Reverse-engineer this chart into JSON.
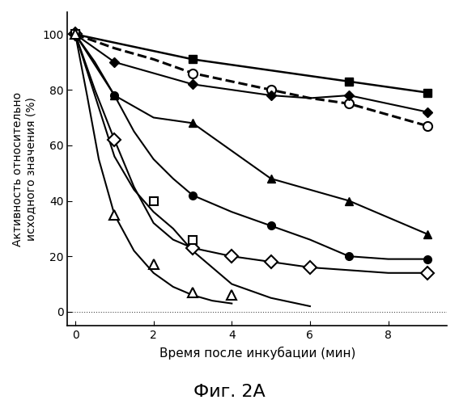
{
  "title": "Фиг. 2А",
  "xlabel": "Время после инкубации (мин)",
  "ylabel": "Активность относительно\nисходного значения (%)",
  "xlim": [
    -0.2,
    9.5
  ],
  "ylim": [
    -5,
    108
  ],
  "xticks": [
    0,
    2,
    4,
    6,
    8
  ],
  "yticks": [
    0,
    20,
    40,
    60,
    80,
    100
  ],
  "series": [
    {
      "name": "filled_square",
      "marker": "s",
      "filled": true,
      "color": "black",
      "linestyle": "-",
      "linewidth": 1.8,
      "markersize": 7,
      "data_x": [
        0,
        3,
        7,
        9
      ],
      "data_y": [
        100,
        91,
        83,
        79
      ],
      "curve_x": [
        0,
        1,
        2,
        3,
        4,
        5,
        6,
        7,
        8,
        9
      ],
      "curve_y": [
        100,
        97,
        94,
        91,
        89,
        87,
        85,
        83,
        81,
        79
      ]
    },
    {
      "name": "open_circle_dashed",
      "marker": "o",
      "filled": false,
      "color": "black",
      "linestyle": "--",
      "linewidth": 2.2,
      "markersize": 8,
      "data_x": [
        0,
        3,
        5,
        7,
        9
      ],
      "data_y": [
        100,
        86,
        80,
        75,
        67
      ],
      "curve_x": [
        0,
        1,
        2,
        3,
        4,
        5,
        6,
        7,
        8,
        9
      ],
      "curve_y": [
        100,
        95,
        91,
        86,
        83,
        80,
        77,
        75,
        71,
        67
      ]
    },
    {
      "name": "filled_diamond",
      "marker": "D",
      "filled": true,
      "color": "black",
      "linestyle": "-",
      "linewidth": 1.5,
      "markersize": 6,
      "data_x": [
        0,
        1,
        3,
        5,
        7,
        9
      ],
      "data_y": [
        100,
        90,
        82,
        78,
        78,
        72
      ],
      "curve_x": [
        0,
        1,
        2,
        3,
        4,
        5,
        6,
        7,
        8,
        9
      ],
      "curve_y": [
        100,
        90,
        86,
        82,
        80,
        78,
        77,
        78,
        75,
        72
      ]
    },
    {
      "name": "filled_triangle",
      "marker": "^",
      "filled": true,
      "color": "black",
      "linestyle": "-",
      "linewidth": 1.5,
      "markersize": 7,
      "data_x": [
        0,
        1,
        3,
        5,
        7,
        9
      ],
      "data_y": [
        100,
        78,
        68,
        48,
        40,
        28
      ],
      "curve_x": [
        0,
        0.5,
        1,
        1.5,
        2,
        3,
        4,
        5,
        6,
        7,
        8,
        9
      ],
      "curve_y": [
        100,
        90,
        78,
        74,
        70,
        68,
        58,
        48,
        44,
        40,
        34,
        28
      ]
    },
    {
      "name": "filled_circle",
      "marker": "o",
      "filled": true,
      "color": "black",
      "linestyle": "-",
      "linewidth": 1.5,
      "markersize": 7,
      "data_x": [
        0,
        1,
        3,
        5,
        7,
        9
      ],
      "data_y": [
        100,
        78,
        42,
        31,
        20,
        19
      ],
      "curve_x": [
        0,
        0.5,
        1,
        1.5,
        2,
        2.5,
        3,
        4,
        5,
        6,
        7,
        8,
        9
      ],
      "curve_y": [
        100,
        89,
        78,
        65,
        55,
        48,
        42,
        36,
        31,
        26,
        20,
        19,
        19
      ]
    },
    {
      "name": "open_diamond",
      "marker": "D",
      "filled": false,
      "color": "black",
      "linestyle": "-",
      "linewidth": 1.5,
      "markersize": 8,
      "data_x": [
        0,
        1,
        3,
        4,
        5,
        6,
        9
      ],
      "data_y": [
        100,
        62,
        23,
        20,
        18,
        16,
        14
      ],
      "curve_x": [
        0,
        0.5,
        1,
        1.5,
        2,
        2.5,
        3,
        4,
        5,
        6,
        7,
        8,
        9
      ],
      "curve_y": [
        100,
        80,
        62,
        45,
        32,
        26,
        23,
        20,
        18,
        16,
        15,
        14,
        14
      ]
    },
    {
      "name": "open_square",
      "marker": "s",
      "filled": false,
      "color": "black",
      "linestyle": "-",
      "linewidth": 1.5,
      "markersize": 7,
      "data_x": [
        0,
        2,
        3
      ],
      "data_y": [
        100,
        40,
        26
      ],
      "curve_x": [
        0,
        0.5,
        1,
        1.5,
        2,
        2.5,
        3,
        3.5,
        4,
        5,
        6
      ],
      "curve_y": [
        100,
        78,
        56,
        44,
        36,
        30,
        22,
        16,
        10,
        5,
        2
      ]
    },
    {
      "name": "open_triangle",
      "marker": "^",
      "filled": false,
      "color": "black",
      "linestyle": "-",
      "linewidth": 1.5,
      "markersize": 8,
      "data_x": [
        0,
        1,
        2,
        3,
        4
      ],
      "data_y": [
        100,
        35,
        17,
        7,
        6
      ],
      "curve_x": [
        0,
        0.3,
        0.6,
        1,
        1.5,
        2,
        2.5,
        3,
        3.5,
        4
      ],
      "curve_y": [
        100,
        78,
        55,
        35,
        22,
        14,
        9,
        6,
        4,
        3
      ]
    }
  ],
  "zero_line_y": 0,
  "background_color": "white",
  "text_color": "black"
}
